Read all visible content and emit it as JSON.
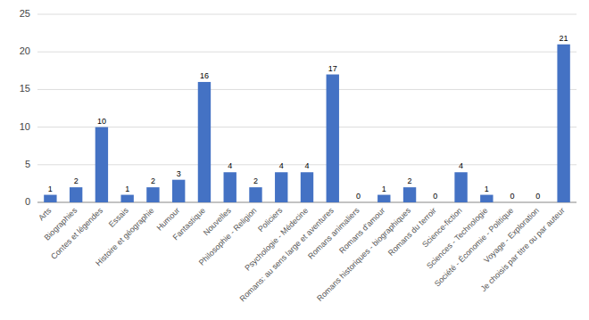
{
  "chart_data": {
    "type": "bar",
    "categories": [
      "Arts",
      "Biographies",
      "Contes et légendes",
      "Essais",
      "Histoire et géographie",
      "Humour",
      "Fantastique",
      "Nouvelles",
      "Philosophie - Religion",
      "Policiers",
      "Psychologie - Médecine",
      "Romans: au sens large et aventures",
      "Romans animaliers",
      "Romans d'amour",
      "Romans historiques - biographiques",
      "Romans du terroir",
      "Science-fiction",
      "Sciences - Technologie",
      "Société - Économie - Politique",
      "Voyage - Exploration",
      "Je choisis par titre ou par auteur"
    ],
    "values": [
      1,
      2,
      10,
      1,
      2,
      3,
      16,
      4,
      2,
      4,
      4,
      17,
      0,
      1,
      2,
      0,
      4,
      1,
      0,
      0,
      21
    ],
    "color": "#4472C4",
    "ylim": [
      0,
      25
    ],
    "yticks": [
      0,
      5,
      10,
      15,
      20,
      25
    ],
    "grid": true,
    "data_labels": true
  }
}
